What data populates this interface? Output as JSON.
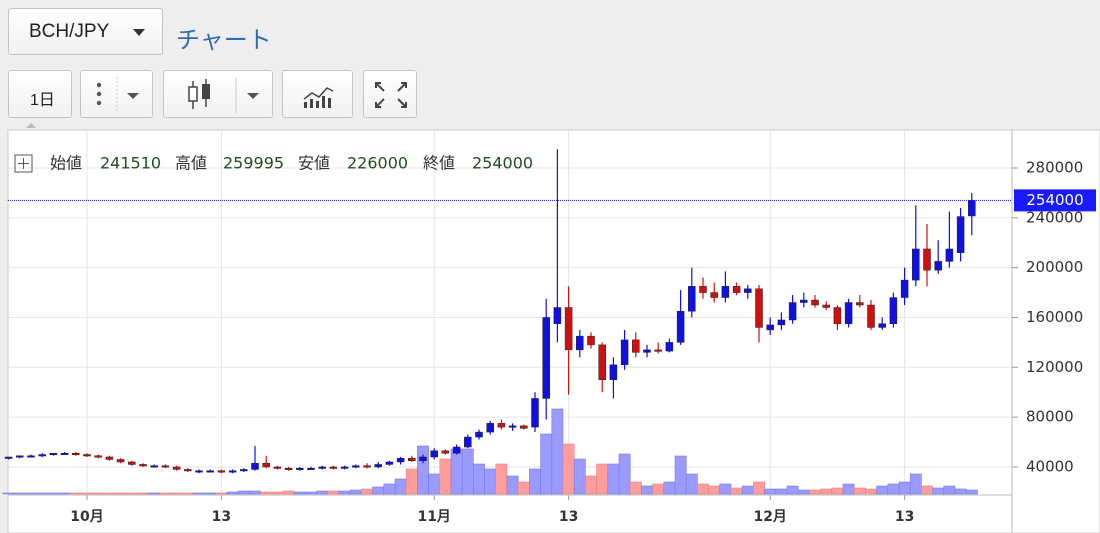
{
  "toolbar": {
    "symbol": "BCH/JPY",
    "title": "チャート",
    "interval": "1日"
  },
  "chart_data": {
    "type": "candlestick",
    "header_labels": [
      "始値",
      "高値",
      "安値",
      "終値"
    ],
    "categories": [
      null,
      null,
      null,
      null,
      null,
      null,
      null,
      "10月",
      null,
      null,
      null,
      null,
      null,
      null,
      null,
      null,
      null,
      null,
      null,
      "13",
      null,
      null,
      null,
      null,
      null,
      null,
      null,
      null,
      null,
      null,
      null,
      null,
      null,
      null,
      null,
      null,
      null,
      null,
      "11月",
      null,
      null,
      null,
      null,
      null,
      null,
      null,
      null,
      null,
      null,
      null,
      "13",
      null,
      null,
      null,
      null,
      null,
      null,
      null,
      null,
      null,
      null,
      null,
      null,
      null,
      null,
      null,
      null,
      null,
      "12月",
      null,
      null,
      null,
      null,
      null,
      null,
      null,
      null,
      null,
      null,
      null,
      "13",
      null,
      null,
      null,
      null,
      null,
      null
    ],
    "open": [
      47000,
      48000,
      49000,
      49000,
      50000,
      51000,
      51000,
      50000,
      49000,
      48000,
      46000,
      44000,
      42000,
      41000,
      41000,
      40000,
      38000,
      37000,
      37000,
      37000,
      36000,
      37000,
      38000,
      43000,
      40000,
      39000,
      38000,
      39000,
      39000,
      40000,
      39000,
      40000,
      41000,
      40000,
      42000,
      44000,
      47000,
      45000,
      48000,
      53000,
      51000,
      56000,
      64000,
      68000,
      75000,
      72000,
      73000,
      72000,
      95000,
      155000,
      168000,
      134000,
      145000,
      138000,
      110000,
      122000,
      142000,
      132000,
      134000,
      133000,
      140000,
      165000,
      185000,
      180000,
      176000,
      185000,
      180000,
      183000,
      150000,
      154000,
      158000,
      172000,
      174000,
      170000,
      168000,
      155000,
      172000,
      170000,
      152000,
      155000,
      176000,
      190000,
      215000,
      198000,
      205000,
      212000,
      241510
    ],
    "high": [
      48000,
      49000,
      50000,
      51000,
      51000,
      52000,
      52000,
      51000,
      50000,
      49000,
      47000,
      45000,
      43000,
      42000,
      42000,
      41000,
      39000,
      38000,
      38000,
      38000,
      38000,
      39000,
      57000,
      49000,
      41000,
      40000,
      40000,
      40000,
      41000,
      41000,
      41000,
      42000,
      43000,
      44000,
      45000,
      48000,
      49000,
      50000,
      55000,
      54000,
      58000,
      66000,
      70000,
      77000,
      78000,
      75000,
      74000,
      100000,
      175000,
      295000,
      185000,
      150000,
      148000,
      140000,
      128000,
      150000,
      148000,
      138000,
      140000,
      143000,
      182000,
      200000,
      192000,
      188000,
      197000,
      188000,
      186000,
      186000,
      160000,
      164000,
      178000,
      180000,
      178000,
      173000,
      170000,
      175000,
      178000,
      174000,
      160000,
      180000,
      200000,
      250000,
      235000,
      222000,
      245000,
      248000,
      259995
    ],
    "low": [
      46000,
      47000,
      48000,
      48000,
      49000,
      50000,
      49000,
      48000,
      47000,
      45000,
      43000,
      41000,
      40000,
      40000,
      39000,
      37000,
      36000,
      35000,
      36000,
      35000,
      35000,
      36000,
      37000,
      39000,
      38000,
      37000,
      37000,
      38000,
      38000,
      38000,
      38000,
      39000,
      39000,
      39000,
      41000,
      42000,
      44000,
      43000,
      46000,
      50000,
      50000,
      55000,
      62000,
      66000,
      70000,
      69000,
      70000,
      68000,
      78000,
      140000,
      98000,
      128000,
      135000,
      100000,
      95000,
      118000,
      128000,
      128000,
      131000,
      132000,
      138000,
      160000,
      175000,
      172000,
      172000,
      178000,
      175000,
      140000,
      146000,
      150000,
      155000,
      168000,
      168000,
      166000,
      150000,
      152000,
      168000,
      150000,
      150000,
      152000,
      170000,
      185000,
      185000,
      195000,
      200000,
      205000,
      226000
    ],
    "close": [
      48000,
      49000,
      49000,
      50000,
      51000,
      51000,
      50000,
      49000,
      48000,
      46000,
      44000,
      42000,
      41000,
      41000,
      40000,
      38000,
      37000,
      37000,
      37000,
      36000,
      37000,
      38000,
      43000,
      40000,
      39000,
      38000,
      39000,
      39000,
      40000,
      39000,
      40000,
      41000,
      40000,
      42000,
      44000,
      47000,
      45000,
      48000,
      53000,
      51000,
      56000,
      64000,
      68000,
      75000,
      72000,
      73000,
      71000,
      95000,
      160000,
      168000,
      134000,
      145000,
      138000,
      110000,
      122000,
      142000,
      132000,
      134000,
      133000,
      140000,
      165000,
      185000,
      180000,
      176000,
      185000,
      180000,
      183000,
      152000,
      154000,
      158000,
      172000,
      174000,
      170000,
      168000,
      155000,
      172000,
      170000,
      152000,
      155000,
      176000,
      190000,
      215000,
      198000,
      205000,
      215000,
      241000,
      254000
    ],
    "volume": [
      1,
      1,
      1,
      1,
      1,
      1,
      1,
      1,
      1,
      1,
      1,
      1,
      1,
      1,
      1,
      1,
      1,
      1,
      1,
      1,
      2,
      3,
      3,
      2,
      2,
      3,
      2,
      2,
      3,
      3,
      3,
      4,
      5,
      7,
      10,
      15,
      25,
      48,
      20,
      35,
      45,
      45,
      30,
      25,
      30,
      18,
      12,
      25,
      60,
      85,
      50,
      35,
      18,
      30,
      30,
      40,
      12,
      8,
      10,
      12,
      38,
      20,
      10,
      8,
      10,
      6,
      8,
      12,
      5,
      5,
      8,
      4,
      4,
      5,
      6,
      10,
      6,
      5,
      8,
      10,
      12,
      20,
      8,
      6,
      8,
      5,
      4
    ],
    "up_color": "#1010e0",
    "down_color": "#d01010",
    "volume_up_color": "#9a9aff",
    "volume_down_color": "#ff9c9c",
    "price_line_color": "#1a1aff",
    "ylim": [
      21500,
      310500
    ],
    "yticks": [
      40000,
      80000,
      120000,
      160000,
      200000,
      240000,
      280000
    ],
    "grid": true
  }
}
